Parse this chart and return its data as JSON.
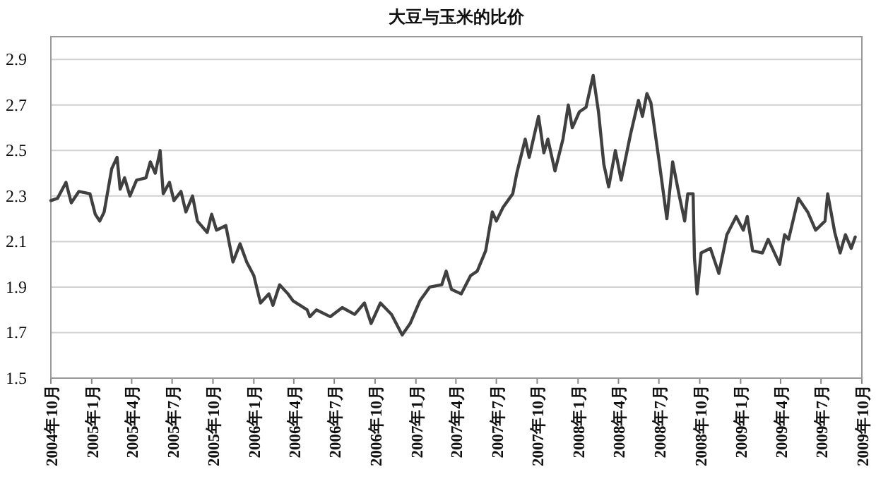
{
  "chart_data": {
    "type": "line",
    "title": "大豆与玉米的比价",
    "x": [
      "2004-10-01",
      "2004-10-16",
      "2004-11-04",
      "2004-11-16",
      "2004-12-03",
      "2004-12-28",
      "2005-01-09",
      "2005-01-19",
      "2005-01-29",
      "2005-02-15",
      "2005-02-27",
      "2005-03-06",
      "2005-03-16",
      "2005-03-28",
      "2005-04-12",
      "2005-05-03",
      "2005-05-13",
      "2005-05-24",
      "2005-06-04",
      "2005-06-11",
      "2005-06-25",
      "2005-07-05",
      "2005-07-21",
      "2005-08-01",
      "2005-08-16",
      "2005-08-27",
      "2005-09-18",
      "2005-09-28",
      "2005-10-09",
      "2005-10-30",
      "2005-11-15",
      "2005-12-01",
      "2005-12-16",
      "2006-01-01",
      "2006-01-16",
      "2006-02-04",
      "2006-02-13",
      "2006-02-28",
      "2006-03-19",
      "2006-03-30",
      "2006-05-01",
      "2006-05-07",
      "2006-05-22",
      "2006-06-22",
      "2006-07-19",
      "2006-08-16",
      "2006-09-07",
      "2006-09-22",
      "2006-10-13",
      "2006-11-07",
      "2006-12-01",
      "2006-12-19",
      "2007-01-10",
      "2007-02-01",
      "2007-02-28",
      "2007-03-10",
      "2007-03-22",
      "2007-04-13",
      "2007-05-04",
      "2007-05-19",
      "2007-06-07",
      "2007-06-22",
      "2007-07-01",
      "2007-07-16",
      "2007-08-07",
      "2007-08-16",
      "2007-09-04",
      "2007-09-13",
      "2007-10-04",
      "2007-10-16",
      "2007-10-25",
      "2007-11-10",
      "2007-11-28",
      "2007-12-10",
      "2007-12-19",
      "2008-01-04",
      "2008-01-19",
      "2008-02-04",
      "2008-02-16",
      "2008-02-28",
      "2008-03-10",
      "2008-03-25",
      "2008-04-07",
      "2008-04-28",
      "2008-05-16",
      "2008-05-25",
      "2008-06-04",
      "2008-06-13",
      "2008-07-01",
      "2008-07-19",
      "2008-08-01",
      "2008-08-16",
      "2008-08-28",
      "2008-09-04",
      "2008-09-16",
      "2008-09-19",
      "2008-09-25",
      "2008-10-04",
      "2008-10-25",
      "2008-11-13",
      "2008-12-01",
      "2008-12-22",
      "2009-01-07",
      "2009-01-16",
      "2009-01-28",
      "2009-02-19",
      "2009-03-04",
      "2009-03-30",
      "2009-04-10",
      "2009-04-19",
      "2009-05-11",
      "2009-06-01",
      "2009-06-19",
      "2009-07-10",
      "2009-07-16",
      "2009-08-01",
      "2009-08-13",
      "2009-08-25",
      "2009-09-07",
      "2009-09-16"
    ],
    "series": [
      {
        "color": "#404040",
        "values": [
          2.28,
          2.29,
          2.36,
          2.27,
          2.32,
          2.31,
          2.22,
          2.19,
          2.23,
          2.42,
          2.47,
          2.33,
          2.38,
          2.3,
          2.37,
          2.38,
          2.45,
          2.4,
          2.5,
          2.31,
          2.36,
          2.28,
          2.32,
          2.23,
          2.3,
          2.19,
          2.14,
          2.22,
          2.15,
          2.17,
          2.01,
          2.09,
          2.01,
          1.95,
          1.83,
          1.87,
          1.82,
          1.91,
          1.87,
          1.84,
          1.8,
          1.77,
          1.8,
          1.77,
          1.81,
          1.78,
          1.83,
          1.74,
          1.83,
          1.78,
          1.69,
          1.74,
          1.84,
          1.9,
          1.91,
          1.97,
          1.89,
          1.87,
          1.95,
          1.97,
          2.06,
          2.23,
          2.19,
          2.25,
          2.31,
          2.4,
          2.55,
          2.47,
          2.65,
          2.49,
          2.55,
          2.41,
          2.55,
          2.7,
          2.6,
          2.67,
          2.69,
          2.83,
          2.67,
          2.44,
          2.34,
          2.5,
          2.37,
          2.57,
          2.72,
          2.65,
          2.75,
          2.71,
          2.46,
          2.2,
          2.45,
          2.3,
          2.19,
          2.31,
          2.31,
          2.03,
          1.87,
          2.05,
          2.07,
          1.96,
          2.13,
          2.21,
          2.15,
          2.21,
          2.06,
          2.05,
          2.11,
          2.0,
          2.13,
          2.11,
          2.29,
          2.23,
          2.15,
          2.19,
          2.31,
          2.14,
          2.05,
          2.13,
          2.07,
          2.12
        ]
      }
    ],
    "xlim": [
      "2004-10",
      "2009-10"
    ],
    "xticks": [
      {
        "value": "2004-10",
        "label": "2004年10月"
      },
      {
        "value": "2005-01",
        "label": "2005年1月"
      },
      {
        "value": "2005-04",
        "label": "2005年4月"
      },
      {
        "value": "2005-07",
        "label": "2005年7月"
      },
      {
        "value": "2005-10",
        "label": "2005年10月"
      },
      {
        "value": "2006-01",
        "label": "2006年1月"
      },
      {
        "value": "2006-04",
        "label": "2006年4月"
      },
      {
        "value": "2006-07",
        "label": "2006年7月"
      },
      {
        "value": "2006-10",
        "label": "2006年10月"
      },
      {
        "value": "2007-01",
        "label": "2007年1月"
      },
      {
        "value": "2007-04",
        "label": "2007年4月"
      },
      {
        "value": "2007-07",
        "label": "2007年7月"
      },
      {
        "value": "2007-10",
        "label": "2007年10月"
      },
      {
        "value": "2008-01",
        "label": "2008年1月"
      },
      {
        "value": "2008-04",
        "label": "2008年4月"
      },
      {
        "value": "2008-07",
        "label": "2008年7月"
      },
      {
        "value": "2008-10",
        "label": "2008年10月"
      },
      {
        "value": "2009-01",
        "label": "2009年1月"
      },
      {
        "value": "2009-04",
        "label": "2009年4月"
      },
      {
        "value": "2009-07",
        "label": "2009年7月"
      },
      {
        "value": "2009-10",
        "label": "2009年10月"
      }
    ],
    "ylim": [
      1.5,
      3.0
    ],
    "yticks": [
      1.5,
      1.7,
      1.9,
      2.1,
      2.3,
      2.5,
      2.7,
      2.9
    ],
    "grid": "y",
    "marker": "none",
    "line_style": "solid"
  }
}
